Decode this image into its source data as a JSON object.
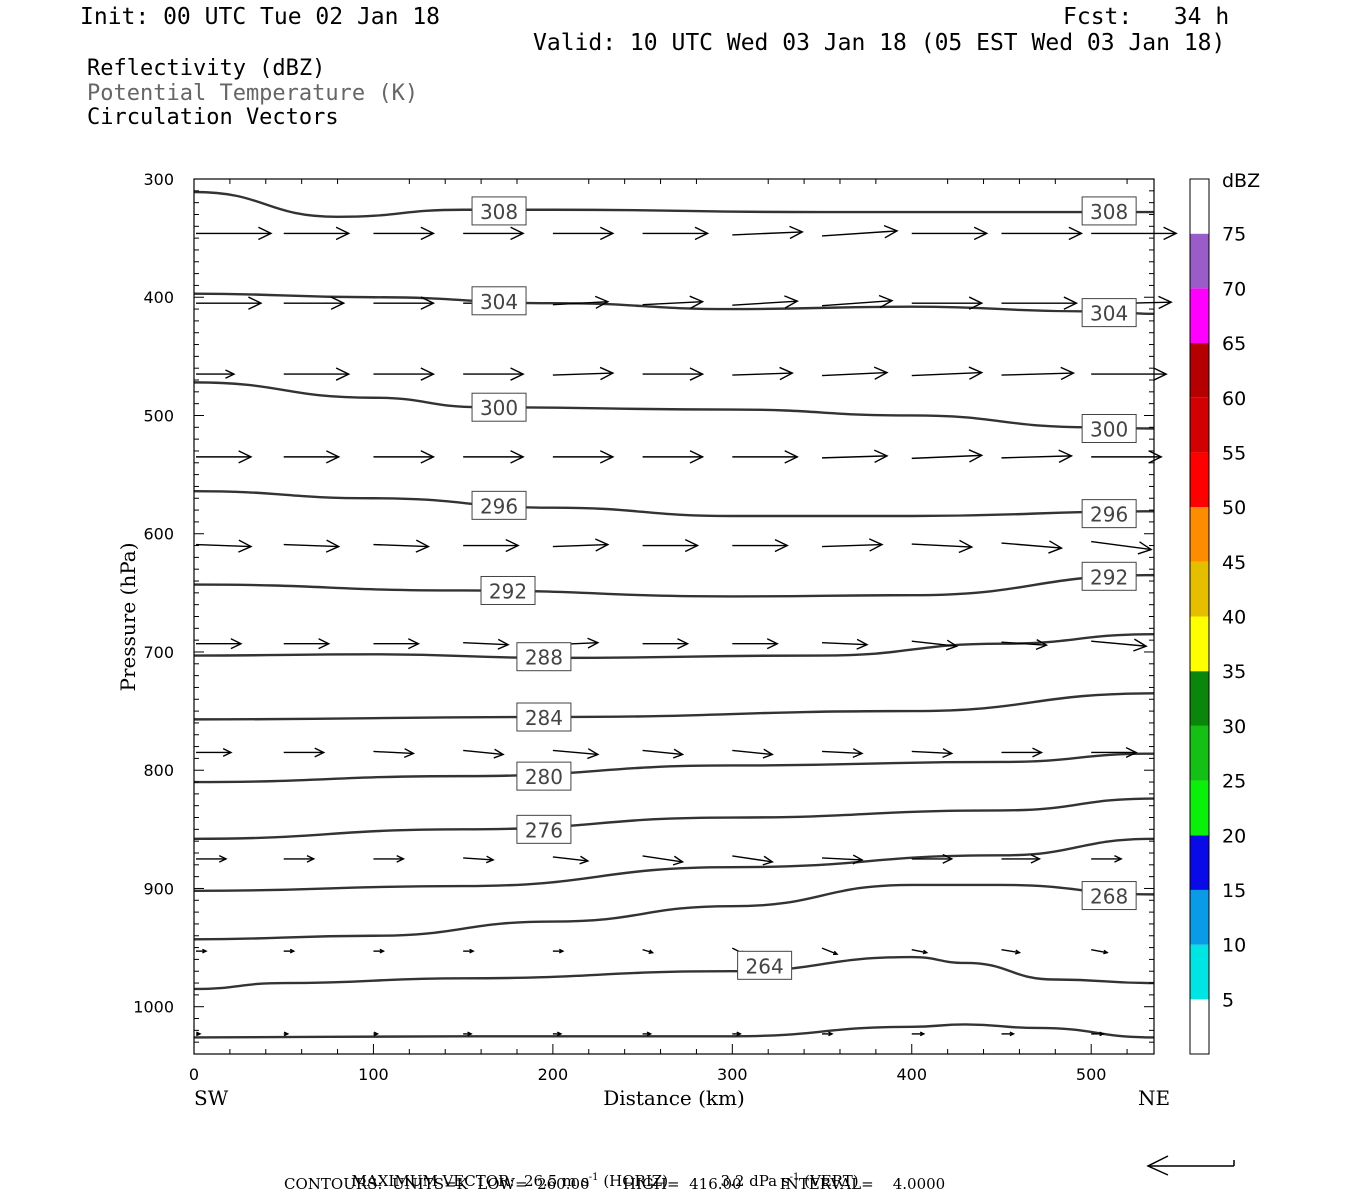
{
  "header": {
    "init": "Init: 00 UTC Tue 02 Jan 18",
    "fcst": "Fcst:   34 h",
    "valid": "Valid: 10 UTC Wed 03 Jan 18 (05 EST Wed 03 Jan 18)"
  },
  "legend": {
    "line1": "Reflectivity (dBZ)",
    "line2": "Potential Temperature (K)",
    "line3": "Circulation Vectors"
  },
  "footer": {
    "max_vector_label": "MAXIMUM VECTOR:",
    "max_horiz": "26.5 m s",
    "horiz_tag": "(HORIZ)",
    "max_vert": "3.2 dPa s",
    "vert_tag": "(VERT)",
    "contours_line": "CONTOURS:  UNITS=K  LOW=  260.00       HIGH=  416.00        INTERVAL=    4.0000"
  },
  "chart_data": {
    "type": "cross-section",
    "xlabel": "Distance (km)",
    "ylabel": "Pressure (hPa)",
    "x_left_label": "SW",
    "x_right_label": "NE",
    "xlim": [
      0,
      535
    ],
    "ylim": [
      1040,
      300
    ],
    "x_ticks": [
      0,
      100,
      200,
      300,
      400,
      500
    ],
    "y_ticks": [
      300,
      400,
      500,
      600,
      700,
      800,
      900,
      1000
    ],
    "colorbar": {
      "title": "dBZ",
      "levels": [
        5,
        10,
        15,
        20,
        25,
        30,
        35,
        40,
        45,
        50,
        55,
        60,
        65,
        70,
        75
      ],
      "colors": [
        "#ffffff",
        "#00e4e4",
        "#0a9be8",
        "#0a0ae6",
        "#0af00a",
        "#14c014",
        "#0a860a",
        "#ffff00",
        "#e6be00",
        "#ff8c00",
        "#ff0000",
        "#d20000",
        "#b40000",
        "#ff00ff",
        "#9a5cc8",
        "#ffffff"
      ]
    },
    "theta_contours": [
      {
        "value": 308,
        "label": "308",
        "x": [
          0,
          80,
          150,
          200,
          350,
          535
        ],
        "p": [
          311,
          332,
          326,
          326,
          328,
          328
        ],
        "label_at": [
          [
            170,
            327
          ],
          [
            510,
            327
          ]
        ]
      },
      {
        "value": 304,
        "label": "304",
        "x": [
          0,
          100,
          200,
          300,
          400,
          500,
          535
        ],
        "p": [
          397,
          400,
          405,
          410,
          408,
          412,
          414
        ],
        "label_at": [
          [
            170,
            403
          ],
          [
            510,
            413
          ]
        ]
      },
      {
        "value": 300,
        "label": "300",
        "x": [
          0,
          100,
          160,
          300,
          400,
          500,
          535
        ],
        "p": [
          472,
          485,
          493,
          495,
          500,
          510,
          511
        ],
        "label_at": [
          [
            170,
            493
          ],
          [
            510,
            511
          ]
        ]
      },
      {
        "value": 296,
        "label": "296",
        "x": [
          0,
          100,
          200,
          300,
          400,
          535
        ],
        "p": [
          564,
          570,
          578,
          585,
          585,
          581
        ],
        "label_at": [
          [
            170,
            576
          ],
          [
            510,
            583
          ]
        ]
      },
      {
        "value": 292,
        "label": "292",
        "x": [
          0,
          150,
          300,
          400,
          535
        ],
        "p": [
          643,
          648,
          653,
          652,
          635
        ],
        "label_at": [
          [
            175,
            648
          ],
          [
            510,
            636
          ]
        ]
      },
      {
        "value": 288,
        "label": "288",
        "x": [
          0,
          100,
          200,
          350,
          450,
          535
        ],
        "p": [
          703,
          702,
          705,
          703,
          693,
          685
        ],
        "label_at": [
          [
            195,
            704
          ]
        ]
      },
      {
        "value": 284,
        "label": "284",
        "x": [
          0,
          200,
          400,
          535
        ],
        "p": [
          757,
          755,
          750,
          735
        ],
        "label_at": [
          [
            195,
            755
          ]
        ]
      },
      {
        "value": 280,
        "label": "280",
        "x": [
          0,
          150,
          300,
          450,
          535
        ],
        "p": [
          810,
          805,
          796,
          793,
          786
        ],
        "label_at": [
          [
            195,
            805
          ]
        ]
      },
      {
        "value": 276,
        "label": "276",
        "x": [
          0,
          150,
          300,
          450,
          535
        ],
        "p": [
          858,
          850,
          840,
          834,
          824
        ],
        "label_at": [
          [
            195,
            850
          ]
        ]
      },
      {
        "value": 272,
        "label": "",
        "x": [
          0,
          150,
          300,
          450,
          535
        ],
        "p": [
          902,
          898,
          882,
          872,
          858
        ],
        "label_at": []
      },
      {
        "value": 268,
        "label": "268",
        "x": [
          0,
          100,
          200,
          300,
          400,
          450,
          535
        ],
        "p": [
          943,
          940,
          928,
          915,
          897,
          897,
          905
        ],
        "label_at": [
          [
            510,
            906
          ]
        ]
      },
      {
        "value": 264,
        "label": "264",
        "x": [
          0,
          50,
          150,
          300,
          400,
          430,
          480,
          535
        ],
        "p": [
          985,
          980,
          976,
          970,
          958,
          963,
          977,
          980
        ],
        "label_at": [
          [
            318,
            965
          ]
        ]
      },
      {
        "value": 260,
        "label": "",
        "x": [
          0,
          150,
          300,
          400,
          430,
          470,
          535
        ],
        "p": [
          1026,
          1025,
          1025,
          1017,
          1015,
          1018,
          1026
        ],
        "label_at": []
      }
    ],
    "vector_rows_hPa": [
      346,
      405,
      465,
      535,
      610,
      693,
      785,
      875,
      953,
      1023
    ],
    "vector_columns_km": [
      0,
      50,
      100,
      150,
      200,
      250,
      300,
      350,
      400,
      450,
      500
    ],
    "vector_lengths_px": [
      [
        75,
        65,
        60,
        60,
        60,
        65,
        70,
        75,
        75,
        80,
        85
      ],
      [
        65,
        60,
        60,
        55,
        55,
        60,
        65,
        70,
        70,
        75,
        80
      ],
      [
        38,
        65,
        60,
        60,
        60,
        60,
        60,
        65,
        70,
        72,
        75
      ],
      [
        55,
        55,
        60,
        60,
        60,
        60,
        65,
        65,
        70,
        70,
        70
      ],
      [
        55,
        55,
        55,
        55,
        55,
        55,
        55,
        60,
        60,
        60,
        60
      ],
      [
        45,
        45,
        45,
        45,
        45,
        45,
        45,
        45,
        45,
        45,
        55
      ],
      [
        35,
        40,
        40,
        40,
        45,
        40,
        40,
        40,
        40,
        40,
        45
      ],
      [
        30,
        30,
        30,
        30,
        35,
        40,
        40,
        40,
        40,
        38,
        30
      ],
      [
        10,
        10,
        10,
        10,
        10,
        10,
        12,
        15,
        15,
        18,
        16
      ],
      [
        4,
        4,
        4,
        8,
        8,
        8,
        8,
        10,
        12,
        12,
        12
      ]
    ],
    "vector_dy_px": [
      [
        0,
        0,
        0,
        0,
        0,
        0,
        -3,
        -5,
        0,
        0,
        0
      ],
      [
        0,
        0,
        0,
        0,
        -3,
        -3,
        -4,
        -5,
        0,
        0,
        -2
      ],
      [
        0,
        0,
        0,
        0,
        -2,
        0,
        -2,
        -3,
        -3,
        -2,
        0
      ],
      [
        0,
        0,
        0,
        0,
        0,
        0,
        0,
        -2,
        -3,
        -2,
        0
      ],
      [
        2,
        2,
        2,
        0,
        -2,
        0,
        0,
        -2,
        3,
        5,
        8
      ],
      [
        0,
        0,
        0,
        2,
        -2,
        0,
        0,
        2,
        5,
        3,
        5
      ],
      [
        0,
        0,
        2,
        4,
        4,
        4,
        4,
        2,
        2,
        0,
        0
      ],
      [
        0,
        0,
        0,
        2,
        4,
        6,
        6,
        2,
        0,
        0,
        0
      ],
      [
        0,
        0,
        0,
        0,
        0,
        3,
        6,
        6,
        3,
        3,
        3
      ],
      [
        0,
        0,
        0,
        0,
        0,
        0,
        0,
        0,
        0,
        0,
        0
      ]
    ]
  }
}
